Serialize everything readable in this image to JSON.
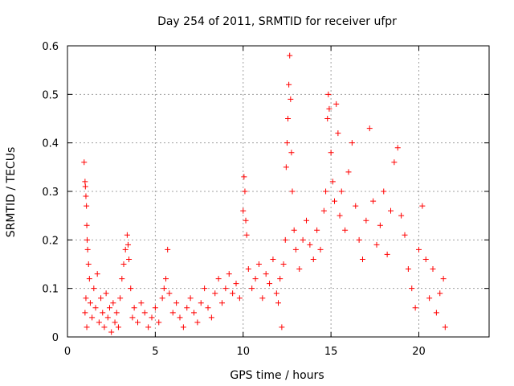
{
  "chart_data": {
    "type": "scatter",
    "title": "Day 254 of 2011, SRMTID for receiver ufpr",
    "xlabel": "GPS time / hours",
    "ylabel": "SRMTID / TECUs",
    "xlim": [
      0,
      24
    ],
    "ylim": [
      0,
      0.6
    ],
    "xticks": [
      0,
      5,
      10,
      15,
      20
    ],
    "yticks": [
      0,
      0.1,
      0.2,
      0.3,
      0.4,
      0.5,
      0.6
    ],
    "xtick_labels": [
      "0",
      "5",
      "10",
      "15",
      "20"
    ],
    "ytick_labels": [
      "0",
      "0.1",
      "0.2",
      "0.3",
      "0.4",
      "0.5",
      "0.6"
    ],
    "grid": true,
    "marker": "+",
    "color": "#ff0000",
    "series": [
      {
        "name": "SRMTID",
        "points": [
          [
            0.95,
            0.36
          ],
          [
            1.0,
            0.32
          ],
          [
            1.02,
            0.31
          ],
          [
            1.05,
            0.29
          ],
          [
            1.08,
            0.27
          ],
          [
            1.1,
            0.23
          ],
          [
            1.12,
            0.2
          ],
          [
            1.15,
            0.18
          ],
          [
            1.0,
            0.05
          ],
          [
            1.05,
            0.08
          ],
          [
            1.1,
            0.02
          ],
          [
            1.2,
            0.15
          ],
          [
            1.25,
            0.12
          ],
          [
            1.3,
            0.07
          ],
          [
            1.4,
            0.04
          ],
          [
            1.5,
            0.1
          ],
          [
            1.6,
            0.06
          ],
          [
            1.7,
            0.13
          ],
          [
            1.8,
            0.03
          ],
          [
            1.9,
            0.08
          ],
          [
            2.0,
            0.05
          ],
          [
            2.1,
            0.02
          ],
          [
            2.2,
            0.09
          ],
          [
            2.3,
            0.04
          ],
          [
            2.4,
            0.06
          ],
          [
            2.5,
            0.01
          ],
          [
            2.6,
            0.07
          ],
          [
            2.7,
            0.03
          ],
          [
            2.8,
            0.05
          ],
          [
            2.9,
            0.02
          ],
          [
            3.0,
            0.08
          ],
          [
            3.1,
            0.12
          ],
          [
            3.2,
            0.15
          ],
          [
            3.3,
            0.18
          ],
          [
            3.4,
            0.21
          ],
          [
            3.45,
            0.19
          ],
          [
            3.5,
            0.16
          ],
          [
            3.6,
            0.1
          ],
          [
            3.7,
            0.04
          ],
          [
            3.8,
            0.06
          ],
          [
            4.0,
            0.03
          ],
          [
            4.2,
            0.07
          ],
          [
            4.4,
            0.05
          ],
          [
            4.6,
            0.02
          ],
          [
            4.8,
            0.04
          ],
          [
            5.0,
            0.06
          ],
          [
            5.2,
            0.03
          ],
          [
            5.4,
            0.08
          ],
          [
            5.5,
            0.1
          ],
          [
            5.6,
            0.12
          ],
          [
            5.7,
            0.18
          ],
          [
            5.8,
            0.09
          ],
          [
            6.0,
            0.05
          ],
          [
            6.2,
            0.07
          ],
          [
            6.4,
            0.04
          ],
          [
            6.6,
            0.02
          ],
          [
            6.8,
            0.06
          ],
          [
            7.0,
            0.08
          ],
          [
            7.2,
            0.05
          ],
          [
            7.4,
            0.03
          ],
          [
            7.6,
            0.07
          ],
          [
            7.8,
            0.1
          ],
          [
            8.0,
            0.06
          ],
          [
            8.2,
            0.04
          ],
          [
            8.4,
            0.09
          ],
          [
            8.6,
            0.12
          ],
          [
            8.8,
            0.07
          ],
          [
            9.0,
            0.1
          ],
          [
            9.2,
            0.13
          ],
          [
            9.4,
            0.09
          ],
          [
            9.6,
            0.11
          ],
          [
            9.8,
            0.08
          ],
          [
            10.0,
            0.26
          ],
          [
            10.05,
            0.33
          ],
          [
            10.1,
            0.3
          ],
          [
            10.15,
            0.24
          ],
          [
            10.2,
            0.21
          ],
          [
            10.3,
            0.14
          ],
          [
            10.5,
            0.1
          ],
          [
            10.7,
            0.12
          ],
          [
            10.9,
            0.15
          ],
          [
            11.1,
            0.08
          ],
          [
            11.3,
            0.13
          ],
          [
            11.5,
            0.11
          ],
          [
            11.7,
            0.16
          ],
          [
            11.9,
            0.09
          ],
          [
            12.0,
            0.07
          ],
          [
            12.1,
            0.12
          ],
          [
            12.2,
            0.02
          ],
          [
            12.3,
            0.15
          ],
          [
            12.4,
            0.2
          ],
          [
            12.45,
            0.35
          ],
          [
            12.5,
            0.4
          ],
          [
            12.55,
            0.45
          ],
          [
            12.6,
            0.52
          ],
          [
            12.65,
            0.58
          ],
          [
            12.7,
            0.49
          ],
          [
            12.75,
            0.38
          ],
          [
            12.8,
            0.3
          ],
          [
            12.9,
            0.22
          ],
          [
            13.0,
            0.18
          ],
          [
            13.2,
            0.14
          ],
          [
            13.4,
            0.2
          ],
          [
            13.6,
            0.24
          ],
          [
            13.8,
            0.19
          ],
          [
            14.0,
            0.16
          ],
          [
            14.2,
            0.22
          ],
          [
            14.4,
            0.18
          ],
          [
            14.6,
            0.26
          ],
          [
            14.7,
            0.3
          ],
          [
            14.8,
            0.45
          ],
          [
            14.85,
            0.5
          ],
          [
            14.9,
            0.47
          ],
          [
            15.0,
            0.38
          ],
          [
            15.1,
            0.32
          ],
          [
            15.2,
            0.28
          ],
          [
            15.3,
            0.48
          ],
          [
            15.4,
            0.42
          ],
          [
            15.5,
            0.25
          ],
          [
            15.6,
            0.3
          ],
          [
            15.8,
            0.22
          ],
          [
            16.0,
            0.34
          ],
          [
            16.2,
            0.4
          ],
          [
            16.4,
            0.27
          ],
          [
            16.6,
            0.2
          ],
          [
            16.8,
            0.16
          ],
          [
            17.0,
            0.24
          ],
          [
            17.2,
            0.43
          ],
          [
            17.4,
            0.28
          ],
          [
            17.6,
            0.19
          ],
          [
            17.8,
            0.23
          ],
          [
            18.0,
            0.3
          ],
          [
            18.2,
            0.17
          ],
          [
            18.4,
            0.26
          ],
          [
            18.6,
            0.36
          ],
          [
            18.8,
            0.39
          ],
          [
            19.0,
            0.25
          ],
          [
            19.2,
            0.21
          ],
          [
            19.4,
            0.14
          ],
          [
            19.6,
            0.1
          ],
          [
            19.8,
            0.06
          ],
          [
            20.0,
            0.18
          ],
          [
            20.2,
            0.27
          ],
          [
            20.4,
            0.16
          ],
          [
            20.6,
            0.08
          ],
          [
            20.8,
            0.14
          ],
          [
            21.0,
            0.05
          ],
          [
            21.2,
            0.09
          ],
          [
            21.4,
            0.12
          ],
          [
            21.5,
            0.02
          ]
        ]
      }
    ]
  }
}
